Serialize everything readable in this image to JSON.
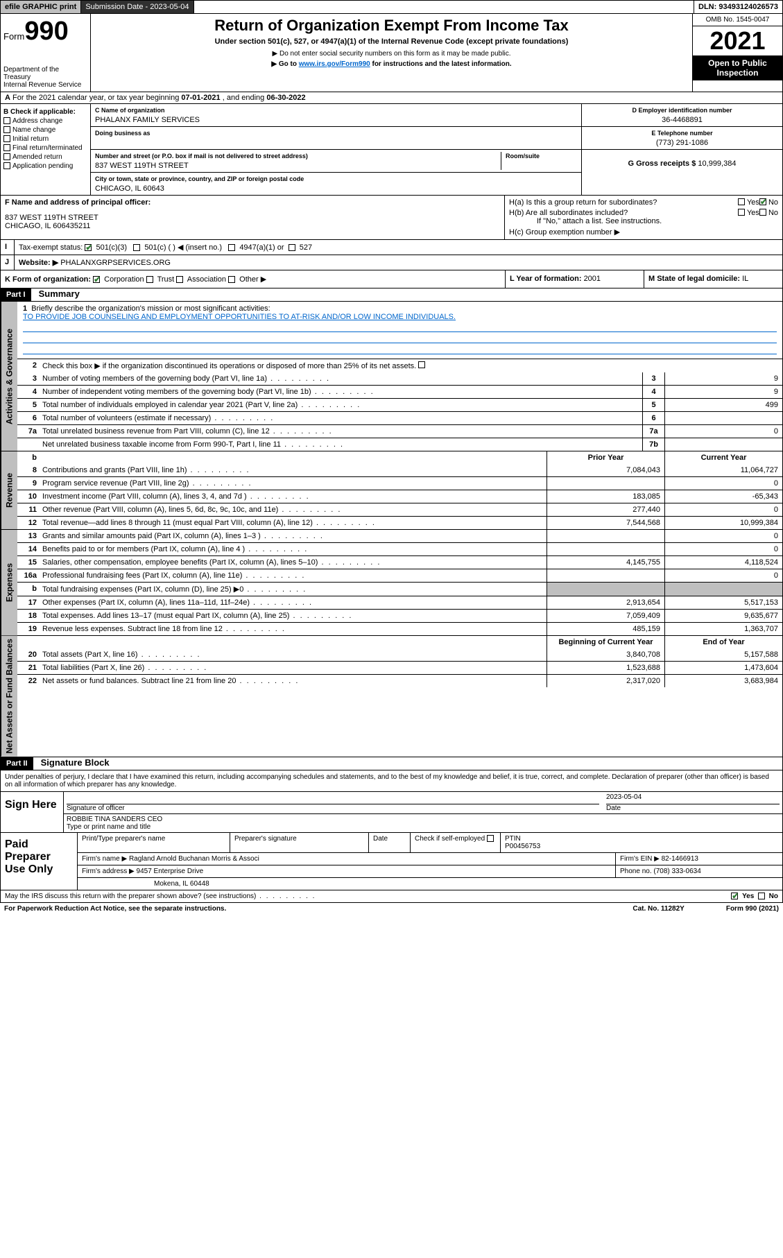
{
  "topbar": {
    "efile": "efile GRAPHIC",
    "print": "print",
    "sub_lbl": "Submission Date - ",
    "sub_val": "2023-05-04",
    "dln_lbl": "DLN: ",
    "dln_val": "93493124026573"
  },
  "header": {
    "form": "Form",
    "num": "990",
    "dept": "Department of the Treasury",
    "irs": "Internal Revenue Service",
    "title": "Return of Organization Exempt From Income Tax",
    "sub1": "Under section 501(c), 527, or 4947(a)(1) of the Internal Revenue Code (except private foundations)",
    "sub2": "▶ Do not enter social security numbers on this form as it may be made public.",
    "sub3_pre": "▶ Go to ",
    "sub3_link": "www.irs.gov/Form990",
    "sub3_post": " for instructions and the latest information.",
    "omb": "OMB No. 1545-0047",
    "year": "2021",
    "inspect": "Open to Public Inspection"
  },
  "rowA": {
    "pre": "For the 2021 calendar year, or tax year beginning ",
    "begin": "07-01-2021",
    "mid": " , and ending ",
    "end": "06-30-2022"
  },
  "B": {
    "hdr": "B Check if applicable:",
    "items": [
      "Address change",
      "Name change",
      "Initial return",
      "Final return/terminated",
      "Amended return",
      "Application pending"
    ]
  },
  "C": {
    "name_lbl": "C Name of organization",
    "name": "PHALANX FAMILY SERVICES",
    "dba_lbl": "Doing business as",
    "street_lbl": "Number and street (or P.O. box if mail is not delivered to street address)",
    "room_lbl": "Room/suite",
    "street": "837 WEST 119TH STREET",
    "city_lbl": "City or town, state or province, country, and ZIP or foreign postal code",
    "city": "CHICAGO, IL  60643"
  },
  "D": {
    "lbl": "D Employer identification number",
    "val": "36-4468891"
  },
  "E": {
    "lbl": "E Telephone number",
    "val": "(773) 291-1086"
  },
  "G": {
    "lbl": "G Gross receipts $ ",
    "val": "10,999,384"
  },
  "F": {
    "lbl": "F  Name and address of principal officer:",
    "l1": "837 WEST 119TH STREET",
    "l2": "CHICAGO, IL  606435211"
  },
  "H": {
    "a": "H(a)  Is this a group return for subordinates?",
    "b": "H(b)  Are all subordinates included?",
    "bnote": "If \"No,\" attach a list. See instructions.",
    "c": "H(c)  Group exemption number ▶",
    "yes": "Yes",
    "no": "No"
  },
  "I": {
    "lbl": "Tax-exempt status:",
    "o1": "501(c)(3)",
    "o2": "501(c) (  ) ◀ (insert no.)",
    "o3": "4947(a)(1) or",
    "o4": "527"
  },
  "J": {
    "lbl": "Website: ▶",
    "val": "PHALANXGRPSERVICES.ORG"
  },
  "K": {
    "lbl": "K Form of organization:",
    "o1": "Corporation",
    "o2": "Trust",
    "o3": "Association",
    "o4": "Other ▶"
  },
  "L": {
    "lbl": "L Year of formation: ",
    "val": "2001"
  },
  "M": {
    "lbl": "M State of legal domicile: ",
    "val": "IL"
  },
  "partI": {
    "hdr": "Part I",
    "title": "Summary"
  },
  "summary": {
    "l1": "Briefly describe the organization's mission or most significant activities:",
    "mission": "TO PROVIDE JOB COUNSELING AND EMPLOYMENT OPPORTUNITIES TO AT-RISK AND/OR LOW INCOME INDIVIDUALS.",
    "l2": "Check this box ▶      if the organization discontinued its operations or disposed of more than 25% of its net assets.",
    "rows_gov": [
      {
        "n": "3",
        "t": "Number of voting members of the governing body (Part VI, line 1a)",
        "box": "3",
        "v": "9"
      },
      {
        "n": "4",
        "t": "Number of independent voting members of the governing body (Part VI, line 1b)",
        "box": "4",
        "v": "9"
      },
      {
        "n": "5",
        "t": "Total number of individuals employed in calendar year 2021 (Part V, line 2a)",
        "box": "5",
        "v": "499"
      },
      {
        "n": "6",
        "t": "Total number of volunteers (estimate if necessary)",
        "box": "6",
        "v": ""
      },
      {
        "n": "7a",
        "t": "Total unrelated business revenue from Part VIII, column (C), line 12",
        "box": "7a",
        "v": "0"
      },
      {
        "n": "",
        "t": "Net unrelated business taxable income from Form 990-T, Part I, line 11",
        "box": "7b",
        "v": ""
      }
    ],
    "col_hdr_b": "b",
    "col_prior": "Prior Year",
    "col_curr": "Current Year",
    "rev": [
      {
        "n": "8",
        "t": "Contributions and grants (Part VIII, line 1h)",
        "p": "7,084,043",
        "c": "11,064,727"
      },
      {
        "n": "9",
        "t": "Program service revenue (Part VIII, line 2g)",
        "p": "",
        "c": "0"
      },
      {
        "n": "10",
        "t": "Investment income (Part VIII, column (A), lines 3, 4, and 7d )",
        "p": "183,085",
        "c": "-65,343"
      },
      {
        "n": "11",
        "t": "Other revenue (Part VIII, column (A), lines 5, 6d, 8c, 9c, 10c, and 11e)",
        "p": "277,440",
        "c": "0"
      },
      {
        "n": "12",
        "t": "Total revenue—add lines 8 through 11 (must equal Part VIII, column (A), line 12)",
        "p": "7,544,568",
        "c": "10,999,384"
      }
    ],
    "exp": [
      {
        "n": "13",
        "t": "Grants and similar amounts paid (Part IX, column (A), lines 1–3 )",
        "p": "",
        "c": "0"
      },
      {
        "n": "14",
        "t": "Benefits paid to or for members (Part IX, column (A), line 4 )",
        "p": "",
        "c": "0"
      },
      {
        "n": "15",
        "t": "Salaries, other compensation, employee benefits (Part IX, column (A), lines 5–10)",
        "p": "4,145,755",
        "c": "4,118,524"
      },
      {
        "n": "16a",
        "t": "Professional fundraising fees (Part IX, column (A), line 11e)",
        "p": "",
        "c": "0"
      },
      {
        "n": "b",
        "t": "Total fundraising expenses (Part IX, column (D), line 25) ▶0",
        "p": "shade",
        "c": "shade"
      },
      {
        "n": "17",
        "t": "Other expenses (Part IX, column (A), lines 11a–11d, 11f–24e)",
        "p": "2,913,654",
        "c": "5,517,153"
      },
      {
        "n": "18",
        "t": "Total expenses. Add lines 13–17 (must equal Part IX, column (A), line 25)",
        "p": "7,059,409",
        "c": "9,635,677"
      },
      {
        "n": "19",
        "t": "Revenue less expenses. Subtract line 18 from line 12",
        "p": "485,159",
        "c": "1,363,707"
      }
    ],
    "na_hdr_p": "Beginning of Current Year",
    "na_hdr_c": "End of Year",
    "na": [
      {
        "n": "20",
        "t": "Total assets (Part X, line 16)",
        "p": "3,840,708",
        "c": "5,157,588"
      },
      {
        "n": "21",
        "t": "Total liabilities (Part X, line 26)",
        "p": "1,523,688",
        "c": "1,473,604"
      },
      {
        "n": "22",
        "t": "Net assets or fund balances. Subtract line 21 from line 20",
        "p": "2,317,020",
        "c": "3,683,984"
      }
    ]
  },
  "vtabs": {
    "gov": "Activities & Governance",
    "rev": "Revenue",
    "exp": "Expenses",
    "na": "Net Assets or Fund Balances"
  },
  "partII": {
    "hdr": "Part II",
    "title": "Signature Block"
  },
  "sig": {
    "decl": "Under penalties of perjury, I declare that I have examined this return, including accompanying schedules and statements, and to the best of my knowledge and belief, it is true, correct, and complete. Declaration of preparer (other than officer) is based on all information of which preparer has any knowledge.",
    "here": "Sign Here",
    "sigoff": "Signature of officer",
    "date_lbl": "Date",
    "date": "2023-05-04",
    "name": "ROBBIE TINA SANDERS CEO",
    "name_lbl": "Type or print name and title",
    "paid": "Paid Preparer Use Only",
    "pt_lbl": "Print/Type preparer's name",
    "ps_lbl": "Preparer's signature",
    "chk_lbl": "Check      if self-employed",
    "ptin_lbl": "PTIN",
    "ptin": "P00456753",
    "firm_lbl": "Firm's name   ▶ ",
    "firm": "Ragland Arnold Buchanan Morris & Associ",
    "ein_lbl": "Firm's EIN ▶ ",
    "ein": "82-1466913",
    "addr_lbl": "Firm's address ▶ ",
    "addr1": "9457 Enterprise Drive",
    "addr2": "Mokena, IL  60448",
    "phone_lbl": "Phone no. ",
    "phone": "(708) 333-0634",
    "discuss": "May the IRS discuss this return with the preparer shown above? (see instructions)"
  },
  "foot": {
    "pra": "For Paperwork Reduction Act Notice, see the separate instructions.",
    "cat": "Cat. No. 11282Y",
    "form": "Form 990 (2021)"
  }
}
